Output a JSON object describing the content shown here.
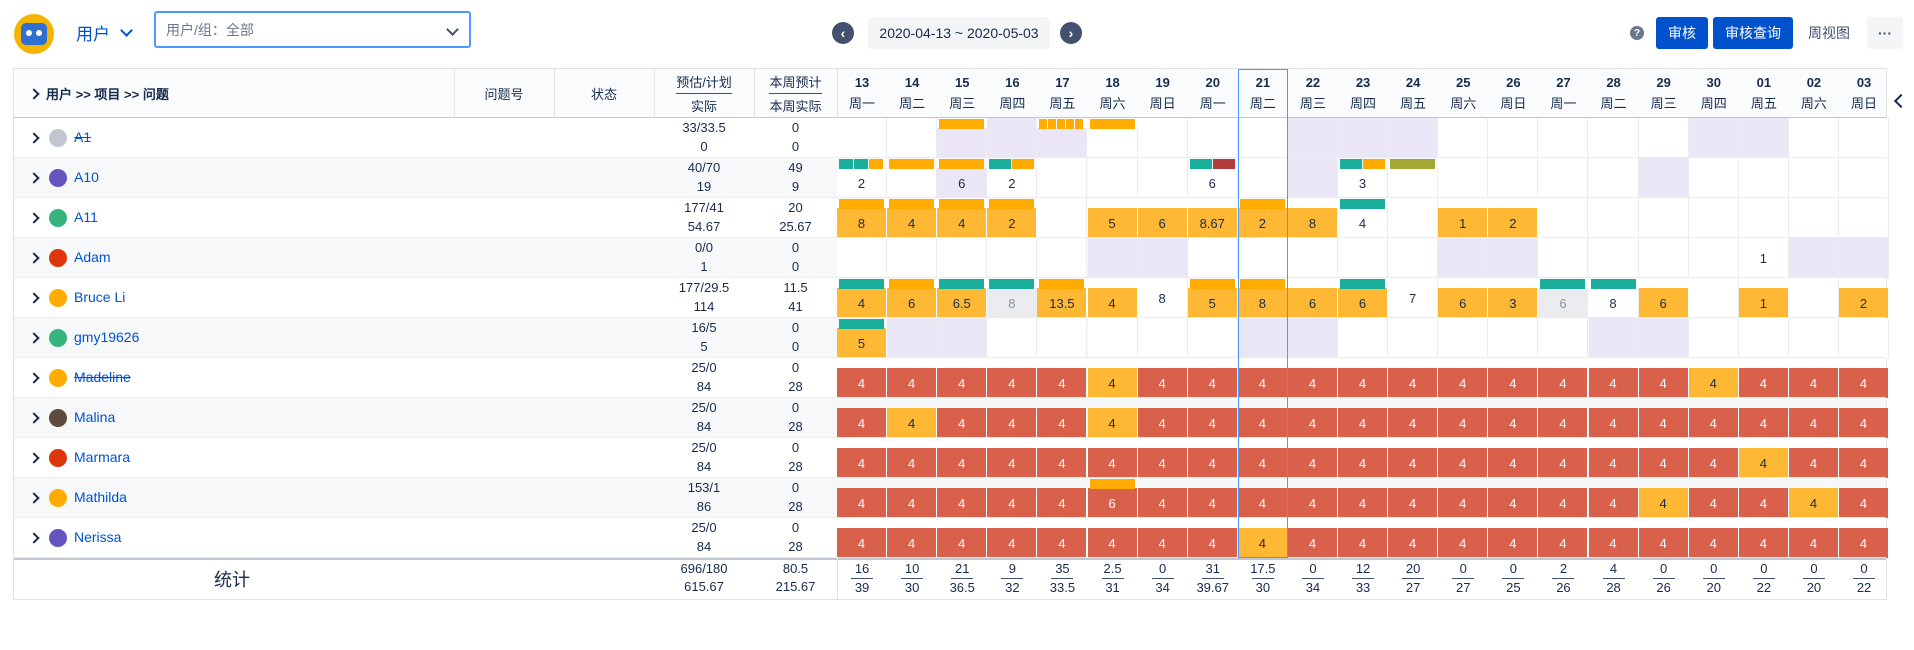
{
  "toolbar": {
    "user_dropdown": "用户",
    "search_placeholder": "用户/组：全部",
    "date_range": "2020-04-13 ~ 2020-05-03",
    "help": "?",
    "btn_review": "审核",
    "btn_review_query": "审核查询",
    "btn_week_view": "周视图",
    "btn_more": "···"
  },
  "header": {
    "path": "用户 >> 项目 >> 问题",
    "issue_no": "问题号",
    "status": "状态",
    "est_plan": "预估/计划",
    "actual": "实际",
    "week_est": "本周预计",
    "week_actual": "本周实际"
  },
  "days": [
    {
      "d": "13",
      "w": "周一"
    },
    {
      "d": "14",
      "w": "周二"
    },
    {
      "d": "15",
      "w": "周三"
    },
    {
      "d": "16",
      "w": "周四"
    },
    {
      "d": "17",
      "w": "周五"
    },
    {
      "d": "18",
      "w": "周六"
    },
    {
      "d": "19",
      "w": "周日"
    },
    {
      "d": "20",
      "w": "周一"
    },
    {
      "d": "21",
      "w": "周二"
    },
    {
      "d": "22",
      "w": "周三"
    },
    {
      "d": "23",
      "w": "周四"
    },
    {
      "d": "24",
      "w": "周五"
    },
    {
      "d": "25",
      "w": "周六"
    },
    {
      "d": "26",
      "w": "周日"
    },
    {
      "d": "27",
      "w": "周一"
    },
    {
      "d": "28",
      "w": "周二"
    },
    {
      "d": "29",
      "w": "周三"
    },
    {
      "d": "30",
      "w": "周四"
    },
    {
      "d": "01",
      "w": "周五"
    },
    {
      "d": "02",
      "w": "周六"
    },
    {
      "d": "03",
      "w": "周日"
    }
  ],
  "colors": {
    "orange": "#ffab00",
    "cellorange": "#ffb833",
    "red": "#d9614c",
    "teal": "#1aaf9c",
    "lav": "#eae6f5",
    "gray": "#ebecf0",
    "darkred": "#b33a3a",
    "olive": "#a3a835",
    "white": "#ffffff"
  },
  "rows": [
    {
      "name": "A1",
      "strike": true,
      "avatar": "gray",
      "est": "33/33.5",
      "act": "0",
      "west": "0",
      "wact": "0",
      "bars": {
        "2": [
          "orange"
        ],
        "4": [
          "orange",
          "orange",
          "orange",
          "orange",
          "orange"
        ],
        "5": [
          "orange"
        ]
      },
      "cells": {
        "0": [
          "white",
          ""
        ],
        "1": [
          "white",
          ""
        ],
        "2": [
          "lav",
          ""
        ],
        "3": [
          "lav",
          ""
        ],
        "4": [
          "lav",
          ""
        ],
        "5": [
          "white",
          ""
        ],
        "6": [
          "white",
          ""
        ],
        "7": [
          "white",
          ""
        ],
        "8": [
          "white",
          ""
        ],
        "9": [
          "lav",
          ""
        ],
        "10": [
          "lav",
          ""
        ],
        "11": [
          "lav",
          ""
        ],
        "12": [
          "white",
          ""
        ],
        "13": [
          "white",
          ""
        ],
        "14": [
          "white",
          ""
        ],
        "15": [
          "white",
          ""
        ],
        "16": [
          "white",
          ""
        ],
        "17": [
          "lav",
          ""
        ],
        "18": [
          "lav",
          ""
        ],
        "19": [
          "white",
          ""
        ],
        "20": [
          "white",
          ""
        ]
      }
    },
    {
      "name": "A10",
      "strike": false,
      "avatar": "purple",
      "est": "40/70",
      "act": "19",
      "west": "49",
      "wact": "9",
      "bars": {
        "0": [
          "teal",
          "teal",
          "orange"
        ],
        "1": [
          "orange"
        ],
        "2": [
          "orange"
        ],
        "3": [
          "teal",
          "orange"
        ],
        "7": [
          "teal",
          "darkred"
        ],
        "10": [
          "teal",
          "orange"
        ],
        "11": [
          "olive"
        ]
      },
      "cells": {
        "0": [
          "white",
          "2"
        ],
        "1": [
          "white",
          ""
        ],
        "2": [
          "lav",
          "6"
        ],
        "3": [
          "white",
          "2"
        ],
        "4": [
          "white",
          ""
        ],
        "5": [
          "white",
          ""
        ],
        "6": [
          "white",
          ""
        ],
        "7": [
          "white",
          "6"
        ],
        "8": [
          "white",
          ""
        ],
        "9": [
          "lav",
          ""
        ],
        "10": [
          "white",
          "3"
        ],
        "11": [
          "white",
          ""
        ],
        "12": [
          "white",
          ""
        ],
        "13": [
          "white",
          ""
        ],
        "14": [
          "white",
          ""
        ],
        "15": [
          "white",
          ""
        ],
        "16": [
          "lav",
          ""
        ],
        "17": [
          "white",
          ""
        ],
        "18": [
          "white",
          ""
        ],
        "19": [
          "white",
          ""
        ],
        "20": [
          "white",
          ""
        ]
      }
    },
    {
      "name": "A11",
      "strike": false,
      "avatar": "teal",
      "est": "177/41",
      "act": "54.67",
      "west": "20",
      "wact": "25.67",
      "bars": {
        "0": [
          "orange"
        ],
        "1": [
          "orange"
        ],
        "2": [
          "orange"
        ],
        "3": [
          "orange"
        ],
        "8": [
          "orange"
        ],
        "10": [
          "teal"
        ]
      },
      "cells": {
        "0": [
          "cellorange",
          "8"
        ],
        "1": [
          "cellorange",
          "4"
        ],
        "2": [
          "cellorange",
          "4"
        ],
        "3": [
          "cellorange",
          "2"
        ],
        "4": [
          "white",
          ""
        ],
        "5": [
          "cellorange",
          "5"
        ],
        "6": [
          "cellorange",
          "6"
        ],
        "7": [
          "cellorange",
          "8.67"
        ],
        "8": [
          "cellorange",
          "2"
        ],
        "9": [
          "cellorange",
          "8"
        ],
        "10": [
          "white",
          "4"
        ],
        "11": [
          "white",
          ""
        ],
        "12": [
          "cellorange",
          "1"
        ],
        "13": [
          "cellorange",
          "2"
        ],
        "14": [
          "white",
          ""
        ],
        "15": [
          "white",
          ""
        ],
        "16": [
          "white",
          ""
        ],
        "17": [
          "white",
          ""
        ],
        "18": [
          "white",
          ""
        ],
        "19": [
          "white",
          ""
        ],
        "20": [
          "white",
          ""
        ]
      }
    },
    {
      "name": "Adam",
      "strike": false,
      "avatar": "red",
      "est": "0/0",
      "act": "1",
      "west": "0",
      "wact": "0",
      "bars": {},
      "cells": {
        "0": [
          "white",
          ""
        ],
        "1": [
          "white",
          ""
        ],
        "2": [
          "white",
          ""
        ],
        "3": [
          "white",
          ""
        ],
        "4": [
          "white",
          ""
        ],
        "5": [
          "lav",
          ""
        ],
        "6": [
          "lav",
          ""
        ],
        "7": [
          "white",
          ""
        ],
        "8": [
          "white",
          ""
        ],
        "9": [
          "white",
          ""
        ],
        "10": [
          "white",
          ""
        ],
        "11": [
          "white",
          ""
        ],
        "12": [
          "lav",
          ""
        ],
        "13": [
          "lav",
          ""
        ],
        "14": [
          "white",
          ""
        ],
        "15": [
          "white",
          ""
        ],
        "16": [
          "white",
          ""
        ],
        "17": [
          "white",
          ""
        ],
        "18": [
          "white",
          "1"
        ],
        "19": [
          "lav",
          ""
        ],
        "20": [
          "lav",
          ""
        ]
      }
    },
    {
      "name": "Bruce Li",
      "strike": false,
      "avatar": "yellow",
      "est": "177/29.5",
      "act": "114",
      "west": "11.5",
      "wact": "41",
      "bars": {
        "0": [
          "teal"
        ],
        "1": [
          "orange"
        ],
        "2": [
          "teal"
        ],
        "3": [
          "teal"
        ],
        "4": [
          "orange"
        ],
        "7": [
          "orange"
        ],
        "8": [
          "orange"
        ],
        "10": [
          "teal"
        ],
        "14": [
          "teal"
        ],
        "15": [
          "teal"
        ]
      },
      "cells": {
        "0": [
          "cellorange",
          "4"
        ],
        "1": [
          "cellorange",
          "6"
        ],
        "2": [
          "cellorange",
          "6.5"
        ],
        "3": [
          "gray",
          "8"
        ],
        "4": [
          "cellorange",
          "13.5"
        ],
        "5": [
          "cellorange",
          "4"
        ],
        "6": [
          "white",
          "8"
        ],
        "7": [
          "cellorange",
          "5"
        ],
        "8": [
          "cellorange",
          "8"
        ],
        "9": [
          "cellorange",
          "6"
        ],
        "10": [
          "cellorange",
          "6"
        ],
        "11": [
          "white",
          "7"
        ],
        "12": [
          "cellorange",
          "6"
        ],
        "13": [
          "cellorange",
          "3"
        ],
        "14": [
          "gray",
          "6"
        ],
        "15": [
          "white",
          "8"
        ],
        "16": [
          "cellorange",
          "6"
        ],
        "17": [
          "white",
          ""
        ],
        "18": [
          "cellorange",
          "1"
        ],
        "19": [
          "white",
          ""
        ],
        "20": [
          "cellorange",
          "2"
        ]
      }
    },
    {
      "name": "gmy19626",
      "strike": false,
      "avatar": "teal",
      "est": "16/5",
      "act": "5",
      "west": "0",
      "wact": "0",
      "bars": {
        "0": [
          "teal"
        ]
      },
      "cells": {
        "0": [
          "cellorange",
          "5"
        ],
        "1": [
          "lav",
          ""
        ],
        "2": [
          "lav",
          ""
        ],
        "3": [
          "white",
          ""
        ],
        "4": [
          "white",
          ""
        ],
        "5": [
          "white",
          ""
        ],
        "6": [
          "white",
          ""
        ],
        "7": [
          "white",
          ""
        ],
        "8": [
          "lav",
          ""
        ],
        "9": [
          "lav",
          ""
        ],
        "10": [
          "white",
          ""
        ],
        "11": [
          "white",
          ""
        ],
        "12": [
          "white",
          ""
        ],
        "13": [
          "white",
          ""
        ],
        "14": [
          "white",
          ""
        ],
        "15": [
          "lav",
          ""
        ],
        "16": [
          "lav",
          ""
        ],
        "17": [
          "white",
          ""
        ],
        "18": [
          "white",
          ""
        ],
        "19": [
          "white",
          ""
        ],
        "20": [
          "white",
          ""
        ]
      }
    },
    {
      "name": "Madeline",
      "strike": true,
      "avatar": "yellow",
      "est": "25/0",
      "act": "84",
      "west": "0",
      "wact": "28",
      "bars": {},
      "cells": {
        "0": [
          "red",
          "4"
        ],
        "1": [
          "red",
          "4"
        ],
        "2": [
          "red",
          "4"
        ],
        "3": [
          "red",
          "4"
        ],
        "4": [
          "red",
          "4"
        ],
        "5": [
          "cellorange",
          "4"
        ],
        "6": [
          "red",
          "4"
        ],
        "7": [
          "red",
          "4"
        ],
        "8": [
          "red",
          "4"
        ],
        "9": [
          "red",
          "4"
        ],
        "10": [
          "red",
          "4"
        ],
        "11": [
          "red",
          "4"
        ],
        "12": [
          "red",
          "4"
        ],
        "13": [
          "red",
          "4"
        ],
        "14": [
          "red",
          "4"
        ],
        "15": [
          "red",
          "4"
        ],
        "16": [
          "red",
          "4"
        ],
        "17": [
          "cellorange",
          "4"
        ],
        "18": [
          "red",
          "4"
        ],
        "19": [
          "red",
          "4"
        ],
        "20": [
          "red",
          "4"
        ]
      }
    },
    {
      "name": "Malina",
      "strike": false,
      "avatar": "dark",
      "est": "25/0",
      "act": "84",
      "west": "0",
      "wact": "28",
      "bars": {},
      "cells": {
        "0": [
          "red",
          "4"
        ],
        "1": [
          "cellorange",
          "4"
        ],
        "2": [
          "red",
          "4"
        ],
        "3": [
          "red",
          "4"
        ],
        "4": [
          "red",
          "4"
        ],
        "5": [
          "cellorange",
          "4"
        ],
        "6": [
          "red",
          "4"
        ],
        "7": [
          "red",
          "4"
        ],
        "8": [
          "red",
          "4"
        ],
        "9": [
          "red",
          "4"
        ],
        "10": [
          "red",
          "4"
        ],
        "11": [
          "red",
          "4"
        ],
        "12": [
          "red",
          "4"
        ],
        "13": [
          "red",
          "4"
        ],
        "14": [
          "red",
          "4"
        ],
        "15": [
          "red",
          "4"
        ],
        "16": [
          "red",
          "4"
        ],
        "17": [
          "red",
          "4"
        ],
        "18": [
          "red",
          "4"
        ],
        "19": [
          "red",
          "4"
        ],
        "20": [
          "red",
          "4"
        ]
      }
    },
    {
      "name": "Marmara",
      "strike": false,
      "avatar": "red",
      "est": "25/0",
      "act": "84",
      "west": "0",
      "wact": "28",
      "bars": {},
      "cells": {
        "0": [
          "red",
          "4"
        ],
        "1": [
          "red",
          "4"
        ],
        "2": [
          "red",
          "4"
        ],
        "3": [
          "red",
          "4"
        ],
        "4": [
          "red",
          "4"
        ],
        "5": [
          "red",
          "4"
        ],
        "6": [
          "red",
          "4"
        ],
        "7": [
          "red",
          "4"
        ],
        "8": [
          "red",
          "4"
        ],
        "9": [
          "red",
          "4"
        ],
        "10": [
          "red",
          "4"
        ],
        "11": [
          "red",
          "4"
        ],
        "12": [
          "red",
          "4"
        ],
        "13": [
          "red",
          "4"
        ],
        "14": [
          "red",
          "4"
        ],
        "15": [
          "red",
          "4"
        ],
        "16": [
          "red",
          "4"
        ],
        "17": [
          "red",
          "4"
        ],
        "18": [
          "cellorange",
          "4"
        ],
        "19": [
          "red",
          "4"
        ],
        "20": [
          "red",
          "4"
        ]
      }
    },
    {
      "name": "Mathilda",
      "strike": false,
      "avatar": "yellow",
      "est": "153/1",
      "act": "86",
      "west": "0",
      "wact": "28",
      "bars": {
        "5": [
          "orange"
        ]
      },
      "cells": {
        "0": [
          "red",
          "4"
        ],
        "1": [
          "red",
          "4"
        ],
        "2": [
          "red",
          "4"
        ],
        "3": [
          "red",
          "4"
        ],
        "4": [
          "red",
          "4"
        ],
        "5": [
          "red",
          "6"
        ],
        "6": [
          "red",
          "4"
        ],
        "7": [
          "red",
          "4"
        ],
        "8": [
          "red",
          "4"
        ],
        "9": [
          "red",
          "4"
        ],
        "10": [
          "red",
          "4"
        ],
        "11": [
          "red",
          "4"
        ],
        "12": [
          "red",
          "4"
        ],
        "13": [
          "red",
          "4"
        ],
        "14": [
          "red",
          "4"
        ],
        "15": [
          "red",
          "4"
        ],
        "16": [
          "cellorange",
          "4"
        ],
        "17": [
          "red",
          "4"
        ],
        "18": [
          "red",
          "4"
        ],
        "19": [
          "cellorange",
          "4"
        ],
        "20": [
          "red",
          "4"
        ]
      }
    },
    {
      "name": "Nerissa",
      "strike": false,
      "avatar": "purple",
      "est": "25/0",
      "act": "84",
      "west": "0",
      "wact": "28",
      "bars": {},
      "cells": {
        "0": [
          "red",
          "4"
        ],
        "1": [
          "red",
          "4"
        ],
        "2": [
          "red",
          "4"
        ],
        "3": [
          "red",
          "4"
        ],
        "4": [
          "red",
          "4"
        ],
        "5": [
          "red",
          "4"
        ],
        "6": [
          "red",
          "4"
        ],
        "7": [
          "red",
          "4"
        ],
        "8": [
          "cellorange",
          "4"
        ],
        "9": [
          "red",
          "4"
        ],
        "10": [
          "red",
          "4"
        ],
        "11": [
          "red",
          "4"
        ],
        "12": [
          "red",
          "4"
        ],
        "13": [
          "red",
          "4"
        ],
        "14": [
          "red",
          "4"
        ],
        "15": [
          "red",
          "4"
        ],
        "16": [
          "red",
          "4"
        ],
        "17": [
          "red",
          "4"
        ],
        "18": [
          "red",
          "4"
        ],
        "19": [
          "red",
          "4"
        ],
        "20": [
          "red",
          "4"
        ]
      }
    }
  ],
  "footer": {
    "label": "统计",
    "est": "696/180",
    "act": "615.67",
    "west": "80.5",
    "wact": "215.67",
    "days_top": [
      "16",
      "10",
      "21",
      "9",
      "35",
      "2.5",
      "0",
      "31",
      "17.5",
      "0",
      "12",
      "20",
      "0",
      "0",
      "2",
      "4",
      "0",
      "0",
      "0",
      "0",
      "0"
    ],
    "days_bottom": [
      "39",
      "30",
      "36.5",
      "32",
      "33.5",
      "31",
      "34",
      "39.67",
      "30",
      "34",
      "33",
      "27",
      "27",
      "25",
      "26",
      "28",
      "26",
      "20",
      "22",
      "20",
      "22"
    ]
  }
}
